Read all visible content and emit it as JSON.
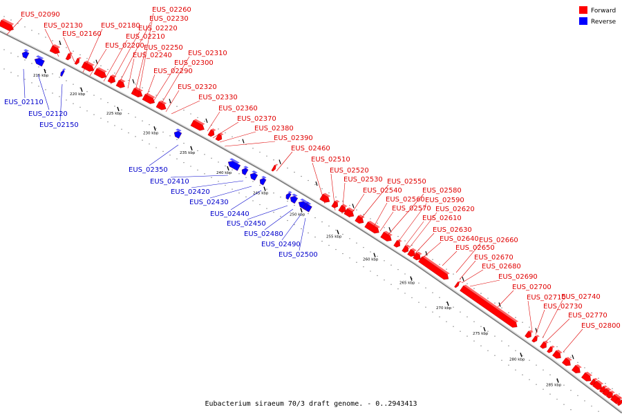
{
  "caption": "Eubacterium siraeum 70/3 draft genome. - 0..2943413",
  "legend": [
    {
      "label": "Forward",
      "color": "#ff0000"
    },
    {
      "label": "Reverse",
      "color": "#0000ff"
    }
  ],
  "colors": {
    "forward": "#ff0000",
    "reverse": "#0000ff",
    "backbone": "#808080",
    "forward_label": "#e00000",
    "reverse_label": "#0000cc"
  },
  "ticks": [
    {
      "label": "215 kbp",
      "kbp": 215
    },
    {
      "label": "220 kbp",
      "kbp": 220
    },
    {
      "label": "225 kbp",
      "kbp": 225
    },
    {
      "label": "230 kbp",
      "kbp": 230
    },
    {
      "label": "235 kbp",
      "kbp": 235
    },
    {
      "label": "240 kbp",
      "kbp": 240
    },
    {
      "label": "245 kbp",
      "kbp": 245
    },
    {
      "label": "250 kbp",
      "kbp": 250
    },
    {
      "label": "255 kbp",
      "kbp": 255
    },
    {
      "label": "260 kbp",
      "kbp": 260
    },
    {
      "label": "265 kbp",
      "kbp": 265
    },
    {
      "label": "270 kbp",
      "kbp": 270
    },
    {
      "label": "275 kbp",
      "kbp": 275
    },
    {
      "label": "280 kbp",
      "kbp": 280
    },
    {
      "label": "285 kbp",
      "kbp": 285
    }
  ],
  "forward_genes": [
    "EUS_02090",
    "EUS_02130",
    "EUS_02160",
    "EUS_02180",
    "EUS_02200",
    "EUS_02210",
    "EUS_02220",
    "EUS_02230",
    "EUS_02240",
    "EUS_02250",
    "EUS_02260",
    "EUS_02290",
    "EUS_02300",
    "EUS_02310",
    "EUS_02320",
    "EUS_02330",
    "EUS_02360",
    "EUS_02370",
    "EUS_02380",
    "EUS_02390",
    "EUS_02460",
    "EUS_02510",
    "EUS_02520",
    "EUS_02530",
    "EUS_02540",
    "EUS_02550",
    "EUS_02560",
    "EUS_02570",
    "EUS_02580",
    "EUS_02590",
    "EUS_02610",
    "EUS_02620",
    "EUS_02630",
    "EUS_02640",
    "EUS_02650",
    "EUS_02660",
    "EUS_02670",
    "EUS_02680",
    "EUS_02690",
    "EUS_02700",
    "EUS_02710",
    "EUS_02730",
    "EUS_02740",
    "EUS_02770",
    "EUS_02800"
  ],
  "reverse_genes": [
    "EUS_02110",
    "EUS_02120",
    "EUS_02150",
    "EUS_02350",
    "EUS_02410",
    "EUS_02420",
    "EUS_02430",
    "EUS_02440",
    "EUS_02450",
    "EUS_02480",
    "EUS_02490",
    "EUS_02500"
  ]
}
